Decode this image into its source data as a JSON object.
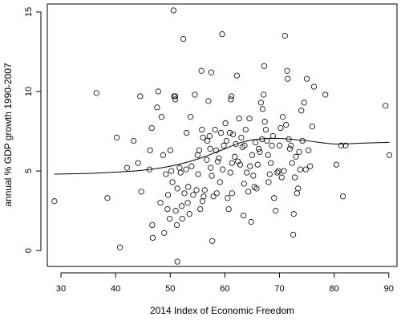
{
  "chart_data": {
    "type": "scatter",
    "xlabel": "2014 Index of Economic Freedom",
    "ylabel": "annual % GDP growth 1990-2007",
    "xlim": [
      27.5,
      91.5
    ],
    "ylim": [
      -1.0,
      15.5
    ],
    "xticks": [
      30,
      40,
      50,
      60,
      70,
      80,
      90
    ],
    "yticks": [
      0,
      5,
      10,
      15
    ],
    "grid": false,
    "legend": "none",
    "points": [
      [
        28.8,
        3.1
      ],
      [
        36.5,
        9.9
      ],
      [
        38.5,
        3.3
      ],
      [
        40.2,
        7.1
      ],
      [
        40.8,
        0.2
      ],
      [
        42.1,
        5.2
      ],
      [
        43.3,
        6.9
      ],
      [
        44.1,
        5.5
      ],
      [
        44.5,
        9.7
      ],
      [
        44.7,
        3.7
      ],
      [
        46.2,
        5.1
      ],
      [
        46.3,
        6.3
      ],
      [
        46.6,
        7.7
      ],
      [
        46.7,
        1.6
      ],
      [
        46.8,
        0.8
      ],
      [
        47.6,
        9.0
      ],
      [
        47.8,
        10.0
      ],
      [
        48.2,
        3.0
      ],
      [
        48.4,
        8.4
      ],
      [
        48.7,
        6.0
      ],
      [
        48.9,
        1.1
      ],
      [
        49.2,
        4.8
      ],
      [
        49.5,
        2.6
      ],
      [
        49.6,
        3.5
      ],
      [
        49.9,
        2.0
      ],
      [
        50.0,
        6.3
      ],
      [
        50.2,
        5.0
      ],
      [
        50.4,
        4.3
      ],
      [
        50.6,
        15.1
      ],
      [
        50.7,
        9.7
      ],
      [
        50.9,
        9.7
      ],
      [
        50.9,
        9.5
      ],
      [
        51.0,
        2.5
      ],
      [
        51.2,
        1.6
      ],
      [
        51.3,
        3.9
      ],
      [
        51.3,
        -0.7
      ],
      [
        51.7,
        5.2
      ],
      [
        51.9,
        4.9
      ],
      [
        52.1,
        2.8
      ],
      [
        52.2,
        2.0
      ],
      [
        52.4,
        13.3
      ],
      [
        52.6,
        3.6
      ],
      [
        52.9,
        5.1
      ],
      [
        53.0,
        7.4
      ],
      [
        53.2,
        3.0
      ],
      [
        53.3,
        4.0
      ],
      [
        53.5,
        2.3
      ],
      [
        53.7,
        8.4
      ],
      [
        53.9,
        5.3
      ],
      [
        54.2,
        3.5
      ],
      [
        54.5,
        9.8
      ],
      [
        54.8,
        3.8
      ],
      [
        55.0,
        6.0
      ],
      [
        55.1,
        4.8
      ],
      [
        55.3,
        6.3
      ],
      [
        55.5,
        2.6
      ],
      [
        55.7,
        11.3
      ],
      [
        55.8,
        7.6
      ],
      [
        55.9,
        3.1
      ],
      [
        56.0,
        7.1
      ],
      [
        56.1,
        3.4
      ],
      [
        56.3,
        3.8
      ],
      [
        56.7,
        5.7
      ],
      [
        56.8,
        6.9
      ],
      [
        57.0,
        9.4
      ],
      [
        57.2,
        7.2
      ],
      [
        57.3,
        6.4
      ],
      [
        57.4,
        5.2
      ],
      [
        57.5,
        11.2
      ],
      [
        57.6,
        4.7
      ],
      [
        57.7,
        0.6
      ],
      [
        57.9,
        3.4
      ],
      [
        58.2,
        7.6
      ],
      [
        58.4,
        6.3
      ],
      [
        58.5,
        3.6
      ],
      [
        58.7,
        5.6
      ],
      [
        58.9,
        5.8
      ],
      [
        59.1,
        4.3
      ],
      [
        59.3,
        7.4
      ],
      [
        59.5,
        13.6
      ],
      [
        59.6,
        5.1
      ],
      [
        59.8,
        6.6
      ],
      [
        60.1,
        8.0
      ],
      [
        60.3,
        6.9
      ],
      [
        60.5,
        3.3
      ],
      [
        60.7,
        2.6
      ],
      [
        60.9,
        7.4
      ],
      [
        61.0,
        4.9
      ],
      [
        61.1,
        9.5
      ],
      [
        61.2,
        9.7
      ],
      [
        61.3,
        5.5
      ],
      [
        61.3,
        3.6
      ],
      [
        61.5,
        7.3
      ],
      [
        61.8,
        5.9
      ],
      [
        62.0,
        6.7
      ],
      [
        62.2,
        11.0
      ],
      [
        62.4,
        5.6
      ],
      [
        62.6,
        8.3
      ],
      [
        62.8,
        5.4
      ],
      [
        63.0,
        7.1
      ],
      [
        63.2,
        6.5
      ],
      [
        63.4,
        2.2
      ],
      [
        63.5,
        4.2
      ],
      [
        63.6,
        6.6
      ],
      [
        63.8,
        7.6
      ],
      [
        64.0,
        4.9
      ],
      [
        64.3,
        3.7
      ],
      [
        64.5,
        8.3
      ],
      [
        64.6,
        5.3
      ],
      [
        64.8,
        1.8
      ],
      [
        65.0,
        6.0
      ],
      [
        65.2,
        4.7
      ],
      [
        65.4,
        4.0
      ],
      [
        65.6,
        6.8
      ],
      [
        65.8,
        3.9
      ],
      [
        66.0,
        5.4
      ],
      [
        66.2,
        6.4
      ],
      [
        66.4,
        6.2
      ],
      [
        66.6,
        9.3
      ],
      [
        66.8,
        7.0
      ],
      [
        66.9,
        8.9
      ],
      [
        67.1,
        9.8
      ],
      [
        67.2,
        11.6
      ],
      [
        67.3,
        8.1
      ],
      [
        67.5,
        7.6
      ],
      [
        67.7,
        6.9
      ],
      [
        67.9,
        6.0
      ],
      [
        68.0,
        4.3
      ],
      [
        68.2,
        4.8
      ],
      [
        68.4,
        5.5
      ],
      [
        68.6,
        6.6
      ],
      [
        68.8,
        7.2
      ],
      [
        69.0,
        3.3
      ],
      [
        69.3,
        2.5
      ],
      [
        69.6,
        4.9
      ],
      [
        69.8,
        5.0
      ],
      [
        70.0,
        6.6
      ],
      [
        70.2,
        7.7
      ],
      [
        70.4,
        4.6
      ],
      [
        70.6,
        8.4
      ],
      [
        70.8,
        5.0
      ],
      [
        71.0,
        13.5
      ],
      [
        71.2,
        7.9
      ],
      [
        71.4,
        11.3
      ],
      [
        71.5,
        10.8
      ],
      [
        71.7,
        7.0
      ],
      [
        71.9,
        6.4
      ],
      [
        72.1,
        6.6
      ],
      [
        72.3,
        5.5
      ],
      [
        72.5,
        1.0
      ],
      [
        72.6,
        2.3
      ],
      [
        72.8,
        4.6
      ],
      [
        73.0,
        5.9
      ],
      [
        73.2,
        3.6
      ],
      [
        73.4,
        3.9
      ],
      [
        73.6,
        6.2
      ],
      [
        73.8,
        5.1
      ],
      [
        74.0,
        8.8
      ],
      [
        74.2,
        6.9
      ],
      [
        74.5,
        9.3
      ],
      [
        74.8,
        5.1
      ],
      [
        75.0,
        10.8
      ],
      [
        75.3,
        6.3
      ],
      [
        75.6,
        5.3
      ],
      [
        76.0,
        7.8
      ],
      [
        76.3,
        10.3
      ],
      [
        78.4,
        9.8
      ],
      [
        80.4,
        5.4
      ],
      [
        81.3,
        6.6
      ],
      [
        81.6,
        3.4
      ],
      [
        82.1,
        6.6
      ],
      [
        89.4,
        9.1
      ],
      [
        90.1,
        6.0
      ]
    ],
    "smooth_line": [
      [
        28.8,
        4.8
      ],
      [
        35.0,
        4.85
      ],
      [
        40.0,
        4.93
      ],
      [
        45.0,
        5.05
      ],
      [
        50.0,
        5.3
      ],
      [
        55.0,
        5.75
      ],
      [
        60.0,
        6.4
      ],
      [
        63.0,
        6.8
      ],
      [
        66.0,
        7.0
      ],
      [
        70.0,
        7.05
      ],
      [
        75.0,
        6.9
      ],
      [
        80.0,
        6.7
      ],
      [
        85.0,
        6.75
      ],
      [
        90.1,
        6.8
      ]
    ]
  }
}
